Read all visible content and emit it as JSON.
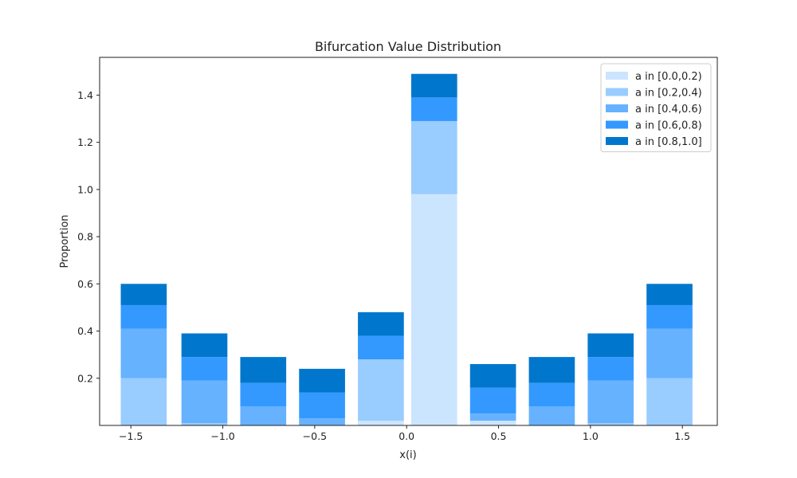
{
  "chart_data": {
    "type": "bar",
    "stacked": true,
    "title": "Bifurcation Value Distribution",
    "xlabel": "x(i)",
    "ylabel": "Proportion",
    "x": [
      -1.43,
      -1.1,
      -0.78,
      -0.46,
      -0.14,
      0.15,
      0.47,
      0.79,
      1.11,
      1.43
    ],
    "xlim": [
      -1.67,
      1.69
    ],
    "ylim": [
      0.0,
      1.56
    ],
    "xticks": [
      -1.5,
      -1.0,
      -0.5,
      0.0,
      0.5,
      1.0,
      1.5
    ],
    "xtick_labels": [
      "−1.5",
      "−1.0",
      "−0.5",
      "0.0",
      "0.5",
      "1.0",
      "1.5"
    ],
    "yticks": [
      0.2,
      0.4,
      0.6,
      0.8,
      1.0,
      1.2,
      1.4
    ],
    "ytick_labels": [
      "0.2",
      "0.4",
      "0.6",
      "0.8",
      "1.0",
      "1.2",
      "1.4"
    ],
    "bar_width": 0.25,
    "grid": false,
    "legend_position": "top-right",
    "series": [
      {
        "name": "a in [0.0,0.2)",
        "color": "#cce5ff",
        "values": [
          0.0,
          0.0,
          0.0,
          0.0,
          0.02,
          0.98,
          0.02,
          0.0,
          0.0,
          0.0
        ]
      },
      {
        "name": "a in [0.2,0.4)",
        "color": "#99ccff",
        "values": [
          0.2,
          0.01,
          0.0,
          0.0,
          0.26,
          0.31,
          0.0,
          0.0,
          0.01,
          0.2
        ]
      },
      {
        "name": "a in [0.4,0.6)",
        "color": "#66b2ff",
        "values": [
          0.21,
          0.18,
          0.08,
          0.03,
          0.0,
          0.0,
          0.03,
          0.08,
          0.18,
          0.21
        ]
      },
      {
        "name": "a in [0.6,0.8)",
        "color": "#3399ff",
        "values": [
          0.1,
          0.1,
          0.1,
          0.11,
          0.1,
          0.1,
          0.11,
          0.1,
          0.1,
          0.1
        ]
      },
      {
        "name": "a in [0.8,1.0]",
        "color": "#0077cc",
        "values": [
          0.09,
          0.1,
          0.11,
          0.1,
          0.1,
          0.1,
          0.1,
          0.11,
          0.1,
          0.09
        ]
      }
    ]
  }
}
